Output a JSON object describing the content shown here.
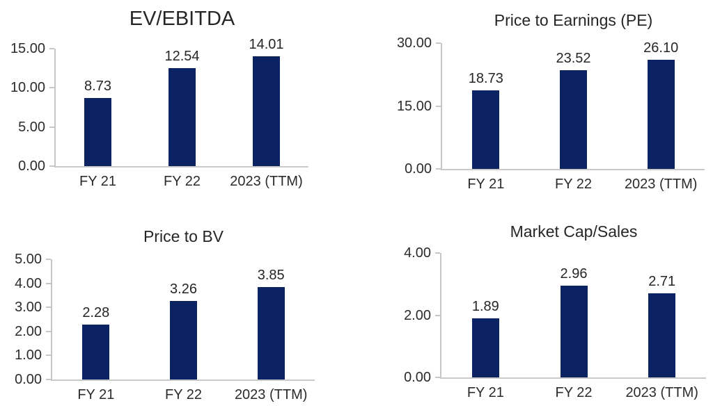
{
  "page": {
    "background_color": "#ffffff",
    "text_color": "#262626",
    "axis_line_color": "#c6c6c6",
    "bar_color": "#0b2362"
  },
  "chart_data": [
    {
      "type": "bar",
      "title": "EV/EBITDA",
      "categories": [
        "FY 21",
        "FY 22",
        "2023 (TTM)"
      ],
      "values": [
        8.73,
        12.54,
        14.01
      ],
      "value_labels": [
        "8.73",
        "12.54",
        "14.01"
      ],
      "xlabel": "",
      "ylabel": "",
      "ylim": [
        0,
        15
      ],
      "yticks": [
        {
          "value": 0,
          "label": "0.00"
        },
        {
          "value": 5,
          "label": "5.00"
        },
        {
          "value": 10,
          "label": "10.00"
        },
        {
          "value": 15,
          "label": "15.00"
        }
      ],
      "bar_color": "#0b2362",
      "grid": false,
      "legend_position": "none",
      "data_labels": true
    },
    {
      "type": "bar",
      "title": "Price to Earnings (PE)",
      "categories": [
        "FY 21",
        "FY 22",
        "2023 (TTM)"
      ],
      "values": [
        18.73,
        23.52,
        26.1
      ],
      "value_labels": [
        "18.73",
        "23.52",
        "26.10"
      ],
      "xlabel": "",
      "ylabel": "",
      "ylim": [
        0,
        30
      ],
      "yticks": [
        {
          "value": 0,
          "label": "0.00"
        },
        {
          "value": 15,
          "label": "15.00"
        },
        {
          "value": 30,
          "label": "30.00"
        }
      ],
      "bar_color": "#0b2362",
      "grid": false,
      "legend_position": "none",
      "data_labels": true
    },
    {
      "type": "bar",
      "title": "Price to BV",
      "categories": [
        "FY 21",
        "FY 22",
        "2023 (TTM)"
      ],
      "values": [
        2.28,
        3.26,
        3.85
      ],
      "value_labels": [
        "2.28",
        "3.26",
        "3.85"
      ],
      "xlabel": "",
      "ylabel": "",
      "ylim": [
        0,
        5
      ],
      "yticks": [
        {
          "value": 0,
          "label": "0.00"
        },
        {
          "value": 1,
          "label": "1.00"
        },
        {
          "value": 2,
          "label": "2.00"
        },
        {
          "value": 3,
          "label": "3.00"
        },
        {
          "value": 4,
          "label": "4.00"
        },
        {
          "value": 5,
          "label": "5.00"
        }
      ],
      "bar_color": "#0b2362",
      "grid": false,
      "legend_position": "none",
      "data_labels": true
    },
    {
      "type": "bar",
      "title": "Market Cap/Sales",
      "categories": [
        "FY 21",
        "FY 22",
        "2023 (TTM)"
      ],
      "values": [
        1.89,
        2.96,
        2.71
      ],
      "value_labels": [
        "1.89",
        "2.96",
        "2.71"
      ],
      "xlabel": "",
      "ylabel": "",
      "ylim": [
        0,
        4
      ],
      "yticks": [
        {
          "value": 0,
          "label": "0.00"
        },
        {
          "value": 2,
          "label": "2.00"
        },
        {
          "value": 4,
          "label": "4.00"
        }
      ],
      "bar_color": "#0b2362",
      "grid": false,
      "legend_position": "none",
      "data_labels": true
    }
  ]
}
